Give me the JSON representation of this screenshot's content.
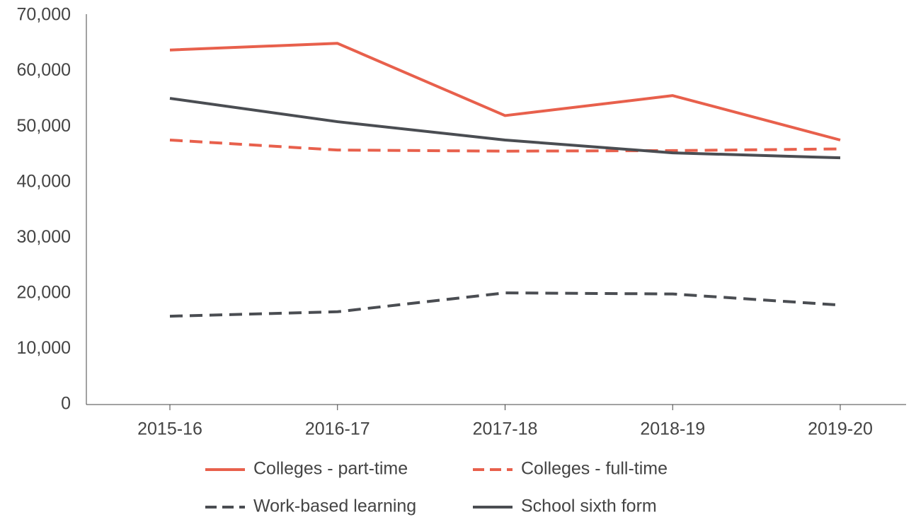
{
  "chart_data": {
    "type": "line",
    "categories": [
      "2015-16",
      "2016-17",
      "2017-18",
      "2018-19",
      "2019-20"
    ],
    "series": [
      {
        "name": "Colleges - part-time",
        "color": "#e8604c",
        "style": "solid",
        "values": [
          63800,
          65000,
          52000,
          55600,
          47600
        ]
      },
      {
        "name": "Colleges - full-time",
        "color": "#e8604c",
        "style": "dashed",
        "values": [
          47600,
          45800,
          45600,
          45700,
          46000
        ]
      },
      {
        "name": "Work-based learning",
        "color": "#4a4d52",
        "style": "dashed",
        "values": [
          15900,
          16700,
          20100,
          19900,
          17900
        ]
      },
      {
        "name": "School sixth form",
        "color": "#4a4d52",
        "style": "solid",
        "values": [
          55100,
          50900,
          47600,
          45300,
          44400
        ]
      }
    ],
    "ylim": [
      0,
      70000
    ],
    "yticks": [
      0,
      {
        "value": 10000,
        "label": "10,000"
      },
      {
        "value": 20000,
        "label": "20,000"
      },
      {
        "value": 30000,
        "label": "30,000"
      },
      {
        "value": 40000,
        "label": "40,000"
      },
      {
        "value": 50000,
        "label": "50,000"
      },
      {
        "value": 60000,
        "label": "60,000"
      },
      {
        "value": 70000,
        "label": "70,000"
      }
    ],
    "grid": false
  }
}
